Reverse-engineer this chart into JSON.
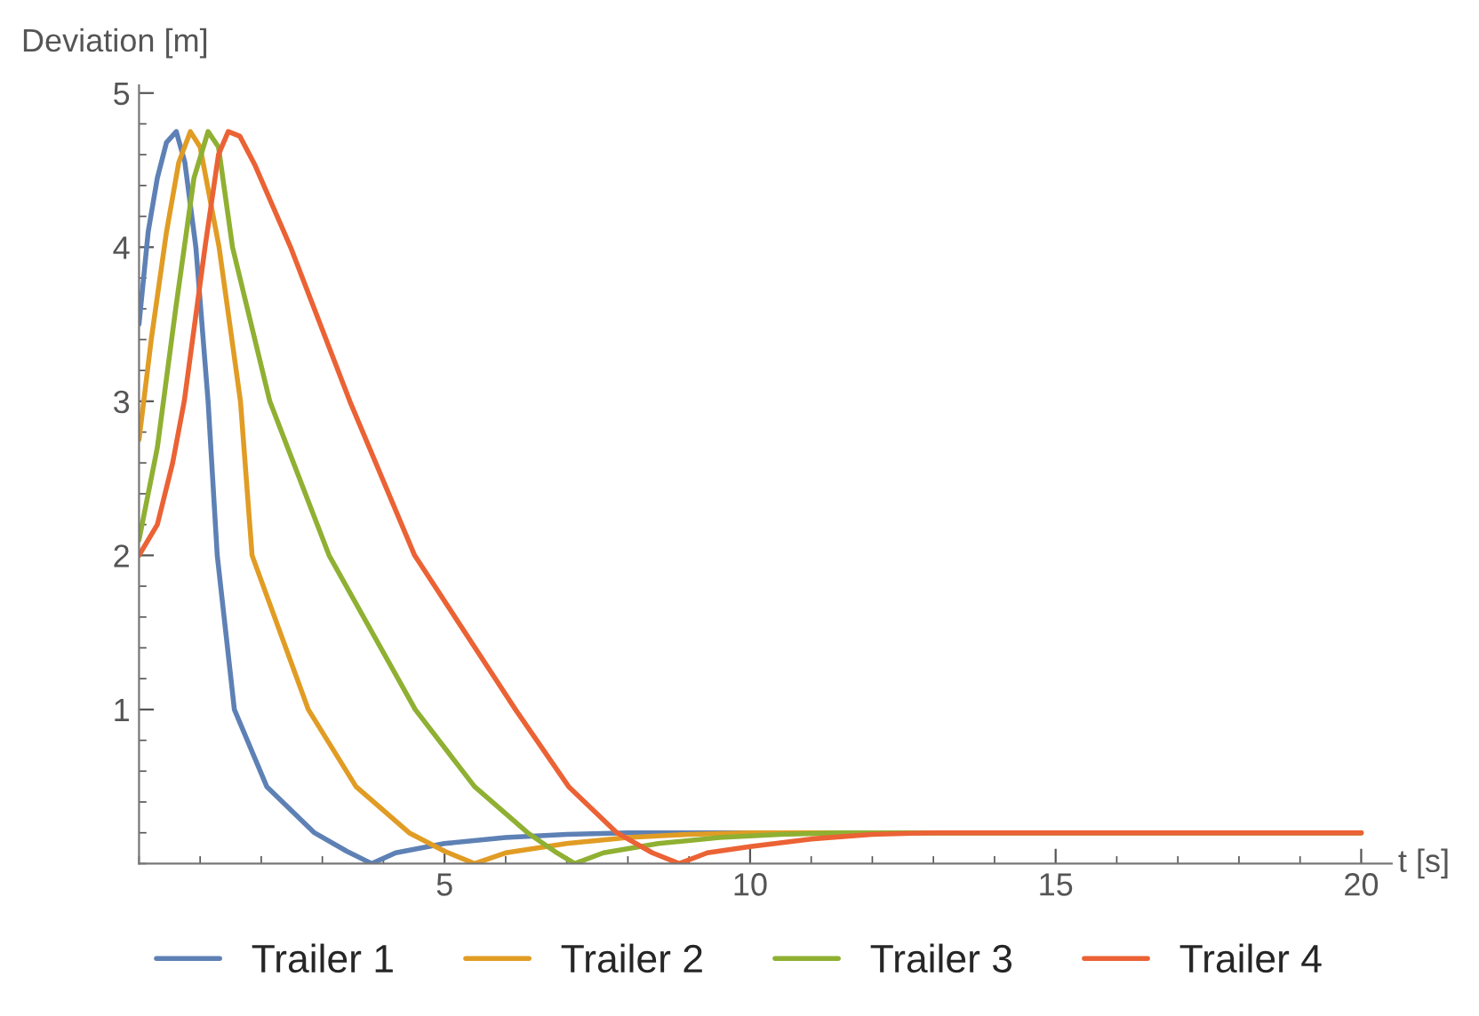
{
  "chart_data": {
    "type": "line",
    "xlabel": "t [s]",
    "ylabel": "Deviation [m]",
    "xlim": [
      0,
      20.5
    ],
    "ylim": [
      0,
      5.05
    ],
    "xticks": [
      5,
      10,
      15,
      20
    ],
    "yticks": [
      1,
      2,
      3,
      4,
      5
    ],
    "grid": false,
    "legend": "bottom",
    "marker": "none",
    "line_style": "solid",
    "series": [
      {
        "name": "Trailer 1",
        "color": "#5e81b5",
        "x": [
          0,
          0.15,
          0.3,
          0.45,
          0.61,
          0.75,
          0.93,
          1.13,
          1.28,
          1.56,
          2.09,
          2.87,
          3.4,
          3.81,
          4.2,
          5,
          6,
          7,
          8,
          20
        ],
        "values": [
          3.5,
          4.1,
          4.45,
          4.68,
          4.75,
          4.55,
          4.0,
          3.0,
          2.0,
          1.0,
          0.5,
          0.2,
          0.08,
          0,
          0.07,
          0.13,
          0.17,
          0.19,
          0.2,
          0.2
        ]
      },
      {
        "name": "Trailer 2",
        "color": "#e19c24",
        "x": [
          0,
          0.2,
          0.45,
          0.65,
          0.84,
          1.0,
          1.31,
          1.66,
          1.85,
          2.77,
          3.55,
          4.42,
          5.0,
          5.49,
          6,
          7,
          8,
          9,
          10,
          20
        ],
        "values": [
          2.75,
          3.4,
          4.1,
          4.55,
          4.75,
          4.65,
          4.0,
          3.0,
          2.0,
          1.0,
          0.5,
          0.2,
          0.08,
          0,
          0.07,
          0.13,
          0.17,
          0.19,
          0.2,
          0.2
        ]
      },
      {
        "name": "Trailer 3",
        "color": "#8fb032",
        "x": [
          0,
          0.3,
          0.6,
          0.9,
          1.13,
          1.3,
          1.53,
          2.14,
          3.11,
          4.52,
          5.49,
          6.36,
          6.8,
          7.13,
          7.6,
          8.5,
          9.5,
          10.5,
          11.5,
          20
        ],
        "values": [
          2.1,
          2.7,
          3.6,
          4.45,
          4.75,
          4.65,
          4.0,
          3.0,
          2.0,
          1.0,
          0.5,
          0.2,
          0.08,
          0,
          0.07,
          0.13,
          0.17,
          0.19,
          0.2,
          0.2
        ]
      },
      {
        "name": "Trailer 4",
        "color": "#eb6235",
        "x": [
          0,
          0.3,
          0.55,
          0.74,
          1.08,
          1.3,
          1.46,
          1.65,
          1.9,
          2.48,
          3.45,
          4.51,
          6.16,
          7.03,
          7.82,
          8.4,
          8.84,
          9.3,
          10,
          11,
          12,
          13,
          20
        ],
        "values": [
          2.0,
          2.2,
          2.6,
          3.0,
          4.0,
          4.6,
          4.75,
          4.72,
          4.53,
          4.0,
          3.0,
          2.0,
          1.0,
          0.5,
          0.2,
          0.07,
          0,
          0.07,
          0.11,
          0.16,
          0.19,
          0.2,
          0.2
        ]
      }
    ]
  }
}
